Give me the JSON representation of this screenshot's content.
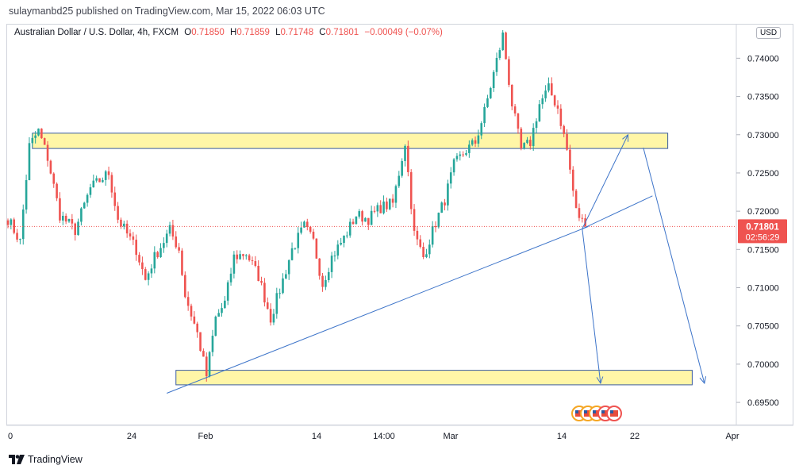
{
  "header": {
    "publisher": "sulaymanbd25 published on TradingView.com, Mar 15, 2022 06:03 UTC"
  },
  "legend": {
    "symbol": "Australian Dollar / U.S. Dollar, 4h, FXCM",
    "o_label": "O",
    "o_value": "0.71850",
    "h_label": "H",
    "h_value": "0.71859",
    "l_label": "L",
    "l_value": "0.71748",
    "c_label": "C",
    "c_value": "0.71801",
    "change": "−0.00049 (−0.07%)"
  },
  "currency_button": "USD",
  "price_badge": {
    "price": "0.71801",
    "countdown": "02:56:29",
    "color": "#ef5350"
  },
  "footer": {
    "brand": "TradingView"
  },
  "colors": {
    "up": "#26a69a",
    "down": "#ef5350",
    "zone_fill": "#fff59d",
    "zone_border": "#3a5ba0",
    "drawing_line": "#3d74c9"
  },
  "chart_data": {
    "type": "candlestick",
    "symbol": "AUDUSD",
    "timeframe": "4h",
    "y_axis": {
      "range": [
        0.692,
        0.7445
      ],
      "ticks": [
        "0.74000",
        "0.73500",
        "0.73000",
        "0.72500",
        "0.72000",
        "0.71500",
        "0.71000",
        "0.70500",
        "0.70000",
        "0.69500"
      ]
    },
    "x_axis": {
      "ticks": [
        "0",
        "24",
        "Feb",
        "14",
        "14:00",
        "Mar",
        "14",
        "22",
        "Apr"
      ]
    },
    "current_price": 0.71801,
    "series": [
      {
        "name": "AUDUSD",
        "anchors": [
          {
            "t": 0,
            "p": 0.719
          },
          {
            "t": 4,
            "p": 0.716
          },
          {
            "t": 7,
            "p": 0.7285
          },
          {
            "t": 10,
            "p": 0.7305
          },
          {
            "t": 13,
            "p": 0.727
          },
          {
            "t": 17,
            "p": 0.7195
          },
          {
            "t": 22,
            "p": 0.7175
          },
          {
            "t": 27,
            "p": 0.723
          },
          {
            "t": 33,
            "p": 0.725
          },
          {
            "t": 36,
            "p": 0.719
          },
          {
            "t": 42,
            "p": 0.715
          },
          {
            "t": 45,
            "p": 0.711
          },
          {
            "t": 48,
            "p": 0.714
          },
          {
            "t": 53,
            "p": 0.7175
          },
          {
            "t": 56,
            "p": 0.715
          },
          {
            "t": 58,
            "p": 0.709
          },
          {
            "t": 62,
            "p": 0.704
          },
          {
            "t": 65,
            "p": 0.6985
          },
          {
            "t": 68,
            "p": 0.706
          },
          {
            "t": 71,
            "p": 0.708
          },
          {
            "t": 74,
            "p": 0.714
          },
          {
            "t": 78,
            "p": 0.7145
          },
          {
            "t": 82,
            "p": 0.7115
          },
          {
            "t": 86,
            "p": 0.706
          },
          {
            "t": 90,
            "p": 0.711
          },
          {
            "t": 93,
            "p": 0.715
          },
          {
            "t": 97,
            "p": 0.718
          },
          {
            "t": 100,
            "p": 0.716
          },
          {
            "t": 103,
            "p": 0.7105
          },
          {
            "t": 106,
            "p": 0.714
          },
          {
            "t": 110,
            "p": 0.7165
          },
          {
            "t": 114,
            "p": 0.7195
          },
          {
            "t": 118,
            "p": 0.719
          },
          {
            "t": 122,
            "p": 0.7205
          },
          {
            "t": 126,
            "p": 0.721
          },
          {
            "t": 130,
            "p": 0.729
          },
          {
            "t": 133,
            "p": 0.717
          },
          {
            "t": 136,
            "p": 0.714
          },
          {
            "t": 140,
            "p": 0.7185
          },
          {
            "t": 143,
            "p": 0.7215
          },
          {
            "t": 146,
            "p": 0.726
          },
          {
            "t": 150,
            "p": 0.728
          },
          {
            "t": 153,
            "p": 0.729
          },
          {
            "t": 156,
            "p": 0.733
          },
          {
            "t": 159,
            "p": 0.738
          },
          {
            "t": 162,
            "p": 0.743
          },
          {
            "t": 165,
            "p": 0.734
          },
          {
            "t": 168,
            "p": 0.728
          },
          {
            "t": 171,
            "p": 0.729
          },
          {
            "t": 174,
            "p": 0.734
          },
          {
            "t": 177,
            "p": 0.736
          },
          {
            "t": 180,
            "p": 0.7335
          },
          {
            "t": 183,
            "p": 0.728
          },
          {
            "t": 186,
            "p": 0.72
          },
          {
            "t": 189,
            "p": 0.718
          }
        ]
      }
    ],
    "zones": [
      {
        "from_t": 8,
        "to_t": 216,
        "low": 0.7282,
        "high": 0.7302
      },
      {
        "from_t": 55,
        "to_t": 224,
        "low": 0.6973,
        "high": 0.6992
      }
    ],
    "trendlines": [
      {
        "t1": 52,
        "p1": 0.6962,
        "t2": 190,
        "p2": 0.718
      },
      {
        "t1": 188,
        "p1": 0.7177,
        "t2": 211,
        "p2": 0.722
      },
      {
        "t1": 188,
        "p1": 0.7177,
        "t2": 194,
        "p2": 0.6975,
        "arrow": true
      },
      {
        "t1": 188,
        "p1": 0.7177,
        "t2": 203,
        "p2": 0.73,
        "arrow": true
      },
      {
        "t1": 208,
        "p1": 0.7283,
        "t2": 228,
        "p2": 0.6975,
        "arrow": true
      }
    ]
  }
}
